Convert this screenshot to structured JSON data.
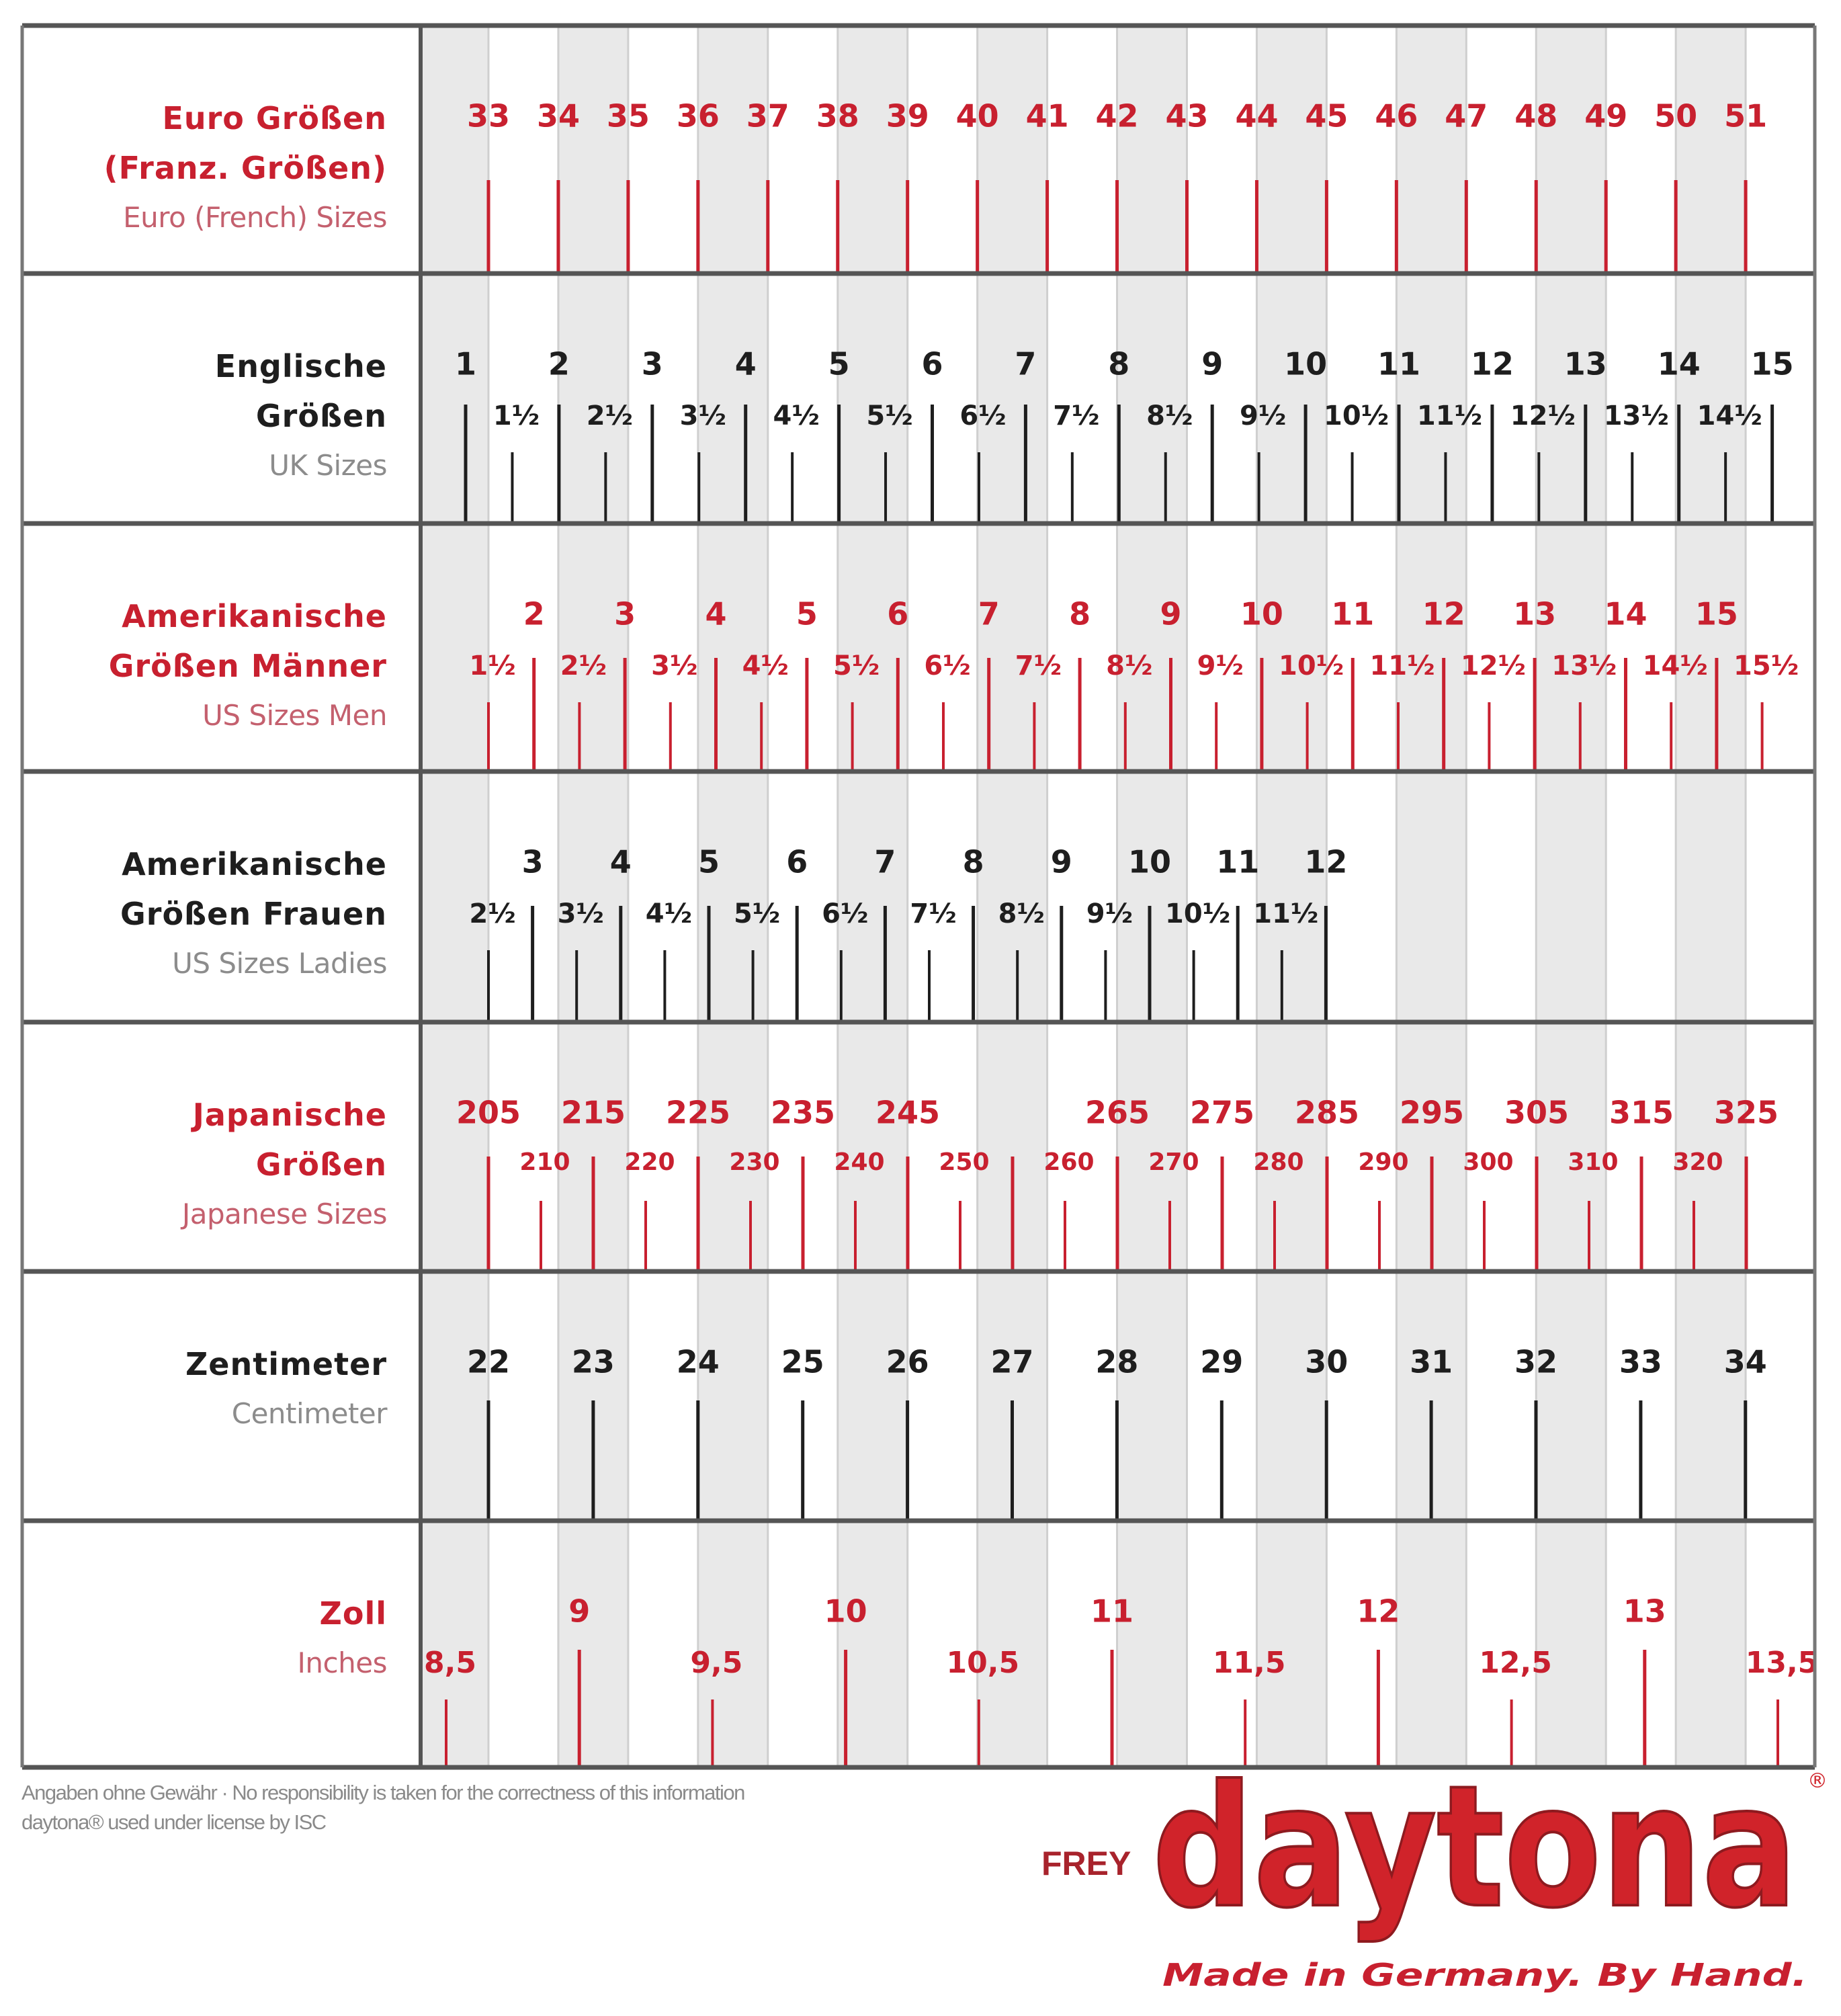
{
  "colors": {
    "red": "#c8202f",
    "red_sub": "#c4606e",
    "dark": "#1e1e1e",
    "grey_sub": "#8c8c8c",
    "stripe": "#e9e9e9",
    "border": "#555555"
  },
  "chart_data": {
    "type": "table",
    "rows": [
      {
        "title_lines": [
          "Euro Größen",
          "(Franz. Größen)"
        ],
        "subtitle": "Euro (French) Sizes",
        "color": "red",
        "major_values": [
          33,
          34,
          35,
          36,
          37,
          38,
          39,
          40,
          41,
          42,
          43,
          44,
          45,
          46,
          47,
          48,
          49,
          50,
          51
        ],
        "major_labels": [
          "33",
          "34",
          "35",
          "36",
          "37",
          "38",
          "39",
          "40",
          "41",
          "42",
          "43",
          "44",
          "45",
          "46",
          "47",
          "48",
          "49",
          "50",
          "51"
        ],
        "minor_values": [],
        "minor_labels": []
      },
      {
        "title_lines": [
          "Englische",
          "Größen"
        ],
        "subtitle": "UK Sizes",
        "color": "dark",
        "major_values": [
          1,
          2,
          3,
          4,
          5,
          6,
          7,
          8,
          9,
          10,
          11,
          12,
          13,
          14,
          15
        ],
        "major_labels": [
          "1",
          "2",
          "3",
          "4",
          "5",
          "6",
          "7",
          "8",
          "9",
          "10",
          "11",
          "12",
          "13",
          "14",
          "15"
        ],
        "minor_values": [
          1.5,
          2.5,
          3.5,
          4.5,
          5.5,
          6.5,
          7.5,
          8.5,
          9.5,
          10.5,
          11.5,
          12.5,
          13.5,
          14.5
        ],
        "minor_labels": [
          "1½",
          "2½",
          "3½",
          "4½",
          "5½",
          "6½",
          "7½",
          "8½",
          "9½",
          "10½",
          "11½",
          "12½",
          "13½",
          "14½"
        ]
      },
      {
        "title_lines": [
          "Amerikanische",
          "Größen Männer"
        ],
        "subtitle": "US Sizes Men",
        "color": "red",
        "major_values": [
          2,
          3,
          4,
          5,
          6,
          7,
          8,
          9,
          10,
          11,
          12,
          13,
          14,
          15
        ],
        "major_labels": [
          "2",
          "3",
          "4",
          "5",
          "6",
          "7",
          "8",
          "9",
          "10",
          "11",
          "12",
          "13",
          "14",
          "15"
        ],
        "minor_values": [
          1.5,
          2.5,
          3.5,
          4.5,
          5.5,
          6.5,
          7.5,
          8.5,
          9.5,
          10.5,
          11.5,
          12.5,
          13.5,
          14.5,
          15.5
        ],
        "minor_labels": [
          "1½",
          "2½",
          "3½",
          "4½",
          "5½",
          "6½",
          "7½",
          "8½",
          "9½",
          "10½",
          "11½",
          "12½",
          "13½",
          "14½",
          "15½"
        ]
      },
      {
        "title_lines": [
          "Amerikanische",
          "Größen Frauen"
        ],
        "subtitle": "US Sizes Ladies",
        "color": "dark",
        "major_values": [
          3,
          4,
          5,
          6,
          7,
          8,
          9,
          10,
          11,
          12
        ],
        "major_labels": [
          "3",
          "4",
          "5",
          "6",
          "7",
          "8",
          "9",
          "10",
          "11",
          "12"
        ],
        "minor_values": [
          2.5,
          3.5,
          4.5,
          5.5,
          6.5,
          7.5,
          8.5,
          9.5,
          10.5,
          11.5
        ],
        "minor_labels": [
          "2½",
          "3½",
          "4½",
          "5½",
          "6½",
          "7½",
          "8½",
          "9½",
          "10½",
          "11½"
        ]
      },
      {
        "title_lines": [
          "Japanische",
          "Größen"
        ],
        "subtitle": "Japanese Sizes",
        "color": "red",
        "major_values": [
          205,
          215,
          225,
          235,
          245,
          255,
          265,
          275,
          285,
          295,
          305,
          315,
          325
        ],
        "major_labels": [
          "205",
          "215",
          "225",
          "235",
          "245",
          "",
          "265",
          "275",
          "285",
          "295",
          "305",
          "315",
          "325"
        ],
        "minor_values": [
          210,
          220,
          230,
          240,
          250,
          260,
          270,
          280,
          290,
          300,
          310,
          320
        ],
        "minor_labels": [
          "210",
          "220",
          "230",
          "240",
          "250",
          "260",
          "270",
          "280",
          "290",
          "300",
          "310",
          "320"
        ]
      },
      {
        "title_lines": [
          "Zentimeter"
        ],
        "subtitle": "Centimeter",
        "color": "dark",
        "major_values": [
          22,
          23,
          24,
          25,
          26,
          27,
          28,
          29,
          30,
          31,
          32,
          33,
          34
        ],
        "major_labels": [
          "22",
          "23",
          "24",
          "25",
          "26",
          "27",
          "28",
          "29",
          "30",
          "31",
          "32",
          "33",
          "34"
        ],
        "minor_values": [],
        "minor_labels": []
      },
      {
        "title_lines": [
          "Zoll"
        ],
        "subtitle": "Inches",
        "color": "red",
        "major_values": [
          9,
          10,
          11,
          12,
          13
        ],
        "major_labels": [
          "9",
          "10",
          "11",
          "12",
          "13"
        ],
        "minor_values": [
          8.5,
          9.5,
          10.5,
          11.5,
          12.5,
          13.5
        ],
        "minor_labels": [
          "8,5",
          "9,5",
          "10,5",
          "11,5",
          "12,5",
          "13,5"
        ]
      }
    ]
  },
  "footer": {
    "disclaimer": "Angaben ohne Gewähr · No responsibility is taken for the correctness of this information",
    "license": "daytona® used under license by ISC"
  },
  "logo": {
    "prefix": "FREY",
    "brand": "daytona",
    "registered": "®",
    "tagline": "Made in Germany. By Hand."
  }
}
